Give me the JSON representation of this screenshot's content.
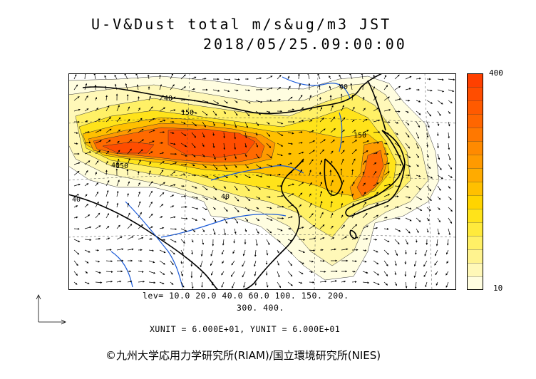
{
  "title": {
    "line1": "U-V&Dust total m/s&ug/m3 JST",
    "line2": "2018/05/25.09:00:00"
  },
  "colorbar": {
    "max_label": "400",
    "min_label": "10",
    "colors": [
      "#fffde0",
      "#fff8b8",
      "#fff38f",
      "#fff066",
      "#ffea3c",
      "#ffe31a",
      "#ffd400",
      "#ffc000",
      "#ffab00",
      "#ff9a00",
      "#ff8a00",
      "#ff7800",
      "#ff6600",
      "#ff5a00",
      "#ff4d00",
      "#ff4000"
    ]
  },
  "contour_labels": [
    "40",
    "150",
    "40",
    "150",
    "150",
    "40",
    "40",
    "40"
  ],
  "legend": {
    "levels_line1": "lev= 10.0 20.0 40.0 60.0 100. 150. 200.",
    "levels_line2": "300. 400.",
    "units": "XUNIT = 6.000E+01, YUNIT = 6.000E+01"
  },
  "credit": "©九州大学応用力学研究所(RIAM)/国立環境研究所(NIES)",
  "icons": {
    "vector_reference": "axis-arrows-icon"
  }
}
